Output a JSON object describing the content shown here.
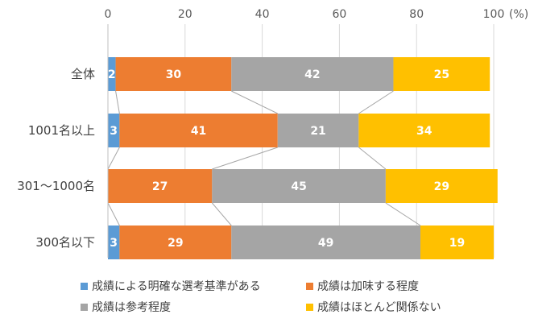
{
  "chart_data": {
    "type": "bar",
    "orientation": "horizontal",
    "stacked": true,
    "unit": "(%)",
    "xlim": [
      0,
      100
    ],
    "xticks": [
      "0",
      "20",
      "40",
      "60",
      "80",
      "100"
    ],
    "categories": [
      "全体",
      "1001名以上",
      "301～1000名",
      "300名以下"
    ],
    "series": [
      {
        "name": "成績による明確な選考基準がある",
        "color": "#5b9bd5",
        "values": [
          2,
          3,
          0,
          3
        ],
        "labels": [
          "2",
          "3",
          "",
          "3"
        ]
      },
      {
        "name": "成績は加味する程度",
        "color": "#ed7d31",
        "values": [
          30,
          41,
          27,
          29
        ],
        "labels": [
          "30",
          "41",
          "27",
          "29"
        ]
      },
      {
        "name": "成績は参考程度",
        "color": "#a5a5a5",
        "values": [
          42,
          21,
          45,
          49
        ],
        "labels": [
          "42",
          "21",
          "45",
          "49"
        ]
      },
      {
        "name": "成績はほとんど関係ない",
        "color": "#ffc000",
        "values": [
          25,
          34,
          29,
          19
        ],
        "labels": [
          "25",
          "34",
          "29",
          "19"
        ]
      }
    ],
    "series_lines": true,
    "legend_position": "bottom",
    "grid": "vertical"
  }
}
